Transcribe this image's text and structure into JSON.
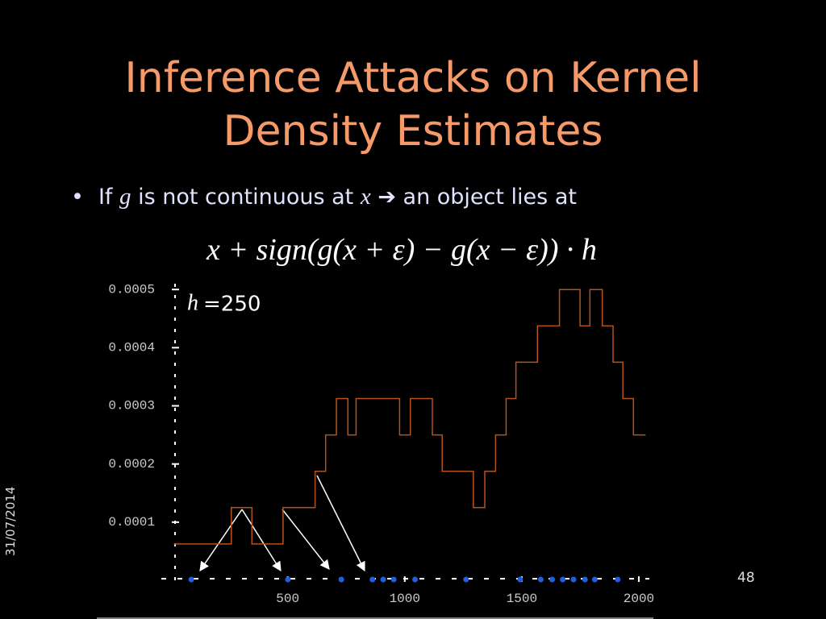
{
  "title": {
    "lines": [
      "Inference Attacks on Kernel",
      "Density Estimates"
    ]
  },
  "bullet": {
    "parts": [
      "If",
      "g",
      "is not continuous at",
      "x",
      "➔",
      "an object lies at"
    ]
  },
  "formula": "x + sign(g(x + ε) − g(x − ε)) · h",
  "date": "31/07/2014",
  "page": "48",
  "chart_data": {
    "type": "step",
    "annotation": {
      "symbol": "h",
      "text": "=250"
    },
    "x": [
      14,
      259,
      347,
      480,
      617,
      662,
      708,
      757,
      792,
      978,
      1024,
      1118,
      1160,
      1293,
      1342,
      1388,
      1433,
      1475,
      1567,
      1661,
      1749,
      1791,
      1844,
      1890,
      1932,
      1977,
      2029
    ],
    "values": [
      6.25e-05,
      0.000125,
      6.25e-05,
      0.000125,
      0.0001875,
      0.00025,
      0.0003125,
      0.00025,
      0.0003125,
      0.00025,
      0.0003125,
      0.00025,
      0.0001875,
      0.000125,
      0.0001875,
      0.00025,
      0.0003125,
      0.000375,
      0.0004375,
      0.0005,
      0.0004375,
      0.0005,
      0.0004375,
      0.000375,
      0.0003125,
      0.00025,
      0.00025
    ],
    "color": "#b5531c",
    "points": {
      "x": [
        88,
        501,
        729,
        862,
        908,
        953,
        1044,
        1262,
        1493,
        1581,
        1630,
        1675,
        1721,
        1770,
        1812,
        1910
      ],
      "values": [
        0,
        0,
        0,
        0,
        0,
        0,
        0,
        0,
        0,
        0,
        0,
        0,
        0,
        0,
        0,
        0
      ],
      "color": "#2060e0"
    },
    "xlim": [
      -40,
      2045
    ],
    "ylim": [
      0,
      0.00051
    ],
    "xticks": [
      500,
      1000,
      1500,
      2000
    ],
    "yticks": [
      0.0001,
      0.0002,
      0.0003,
      0.0004,
      0.0005
    ]
  }
}
